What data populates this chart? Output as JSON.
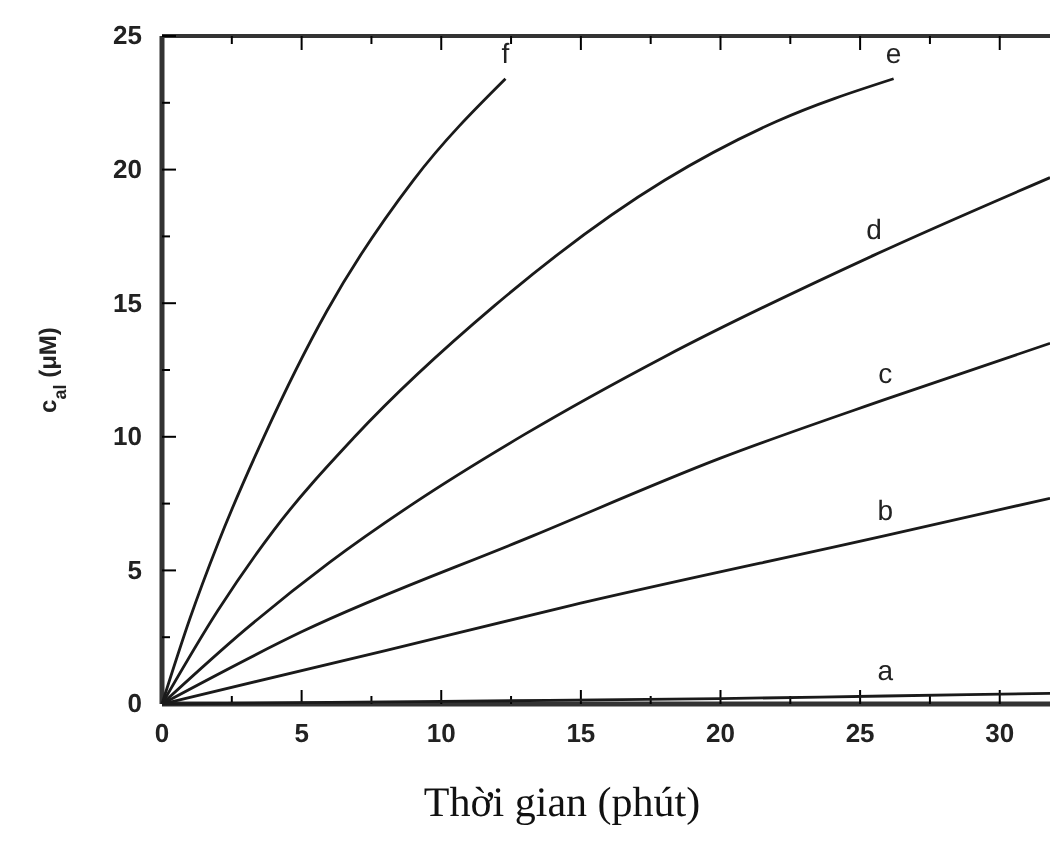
{
  "chart_data": {
    "type": "line",
    "xlabel": "Thời gian (phút)",
    "ylabel": "c$_{al}$ (μM)",
    "xlim": [
      0,
      31.8
    ],
    "ylim": [
      0,
      25
    ],
    "xticks": [
      0,
      {
        "value": 2.5,
        "label": null
      },
      5,
      {
        "value": 7.5,
        "label": null
      },
      10,
      {
        "value": 12.5,
        "label": null
      },
      15,
      {
        "value": 17.5,
        "label": null
      },
      20,
      {
        "value": 22.5,
        "label": null
      },
      25,
      {
        "value": 27.5,
        "label": null
      },
      30
    ],
    "yticks": [
      0,
      {
        "value": 2.5,
        "label": null
      },
      5,
      {
        "value": 7.5,
        "label": null
      },
      10,
      {
        "value": 12.5,
        "label": null
      },
      15,
      {
        "value": 17.5,
        "label": null
      },
      20,
      {
        "value": 22.5,
        "label": null
      },
      25
    ],
    "grid": false,
    "marker": "none",
    "line_style": "solid",
    "series": [
      {
        "name": "f",
        "color": "#1a1a1a",
        "x": [
          0,
          1,
          2,
          3.65,
          5.9,
          9,
          12.3
        ],
        "values": [
          0,
          3.2,
          6,
          10,
          14.7,
          19.6,
          23.4
        ]
      },
      {
        "name": "e",
        "color": "#1a1a1a",
        "x": [
          0,
          2,
          4,
          6.9,
          11.9,
          18,
          22,
          26.2
        ],
        "values": [
          0,
          3.5,
          6.5,
          10,
          14.9,
          19.6,
          21.8,
          23.4
        ]
      },
      {
        "name": "d",
        "color": "#1a1a1a",
        "x": [
          0,
          3,
          6,
          9,
          13,
          18,
          25.5,
          31.8
        ],
        "values": [
          0,
          2.8,
          5.3,
          7.5,
          10.1,
          13,
          16.8,
          19.7
        ]
      },
      {
        "name": "c",
        "color": "#1a1a1a",
        "x": [
          0,
          5,
          13.3,
          20,
          25.9,
          31.8
        ],
        "values": [
          0,
          2.7,
          6.3,
          9.2,
          11.4,
          13.5
        ]
      },
      {
        "name": "b",
        "color": "#1a1a1a",
        "x": [
          0,
          8,
          14.7,
          25.9,
          31.8
        ],
        "values": [
          0,
          2,
          3.7,
          6.3,
          7.7
        ]
      },
      {
        "name": "a",
        "color": "#1a1a1a",
        "x": [
          0,
          10,
          20,
          25.9,
          31.8
        ],
        "values": [
          0,
          0.1,
          0.2,
          0.3,
          0.4
        ]
      }
    ]
  }
}
